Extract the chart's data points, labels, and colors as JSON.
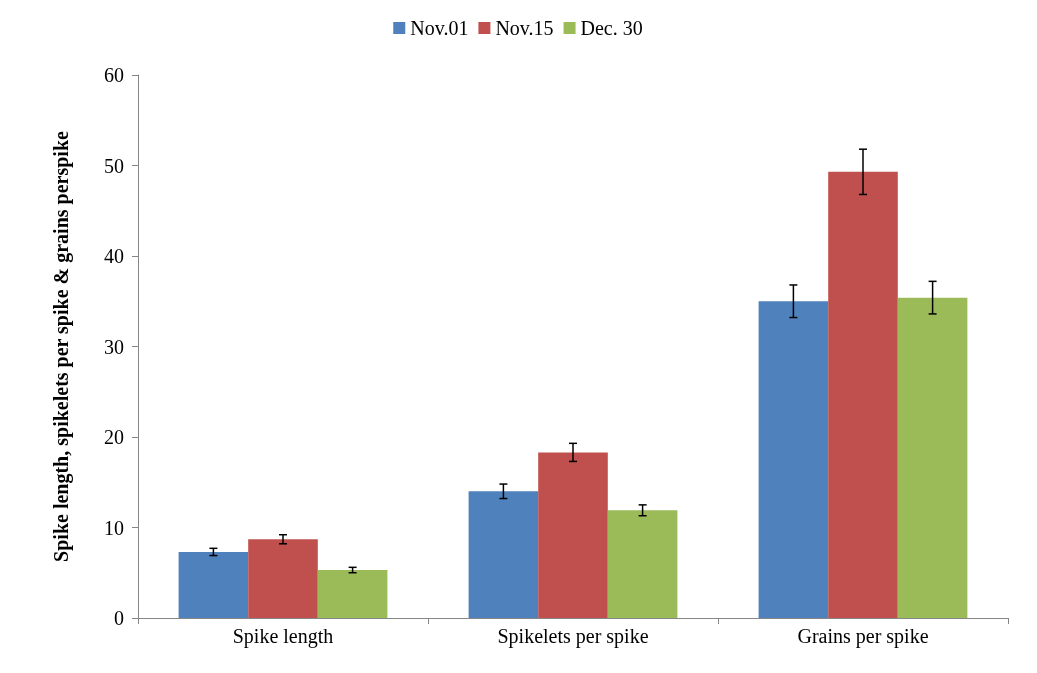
{
  "chart_data": {
    "type": "bar",
    "ylabel": "Spike length, spikelets per spike & grains perspike",
    "categories": [
      "Spike length",
      "Spikelets per spike",
      "Grains per spike"
    ],
    "series": [
      {
        "name": "Nov.01",
        "color": "#4f81bd",
        "values": [
          7.3,
          14.0,
          35.0
        ],
        "errors": [
          0.4,
          0.8,
          1.8
        ]
      },
      {
        "name": "Nov.15",
        "color": "#c0504d",
        "values": [
          8.7,
          18.3,
          49.3
        ],
        "errors": [
          0.5,
          1.0,
          2.5
        ]
      },
      {
        "name": "Dec. 30",
        "color": "#9bbb59",
        "values": [
          5.3,
          11.9,
          35.4
        ],
        "errors": [
          0.3,
          0.6,
          1.8
        ]
      }
    ],
    "ylim": [
      0,
      60
    ],
    "yticks": [
      0,
      10,
      20,
      30,
      40,
      50,
      60
    ],
    "grid": false,
    "legend": "top"
  }
}
